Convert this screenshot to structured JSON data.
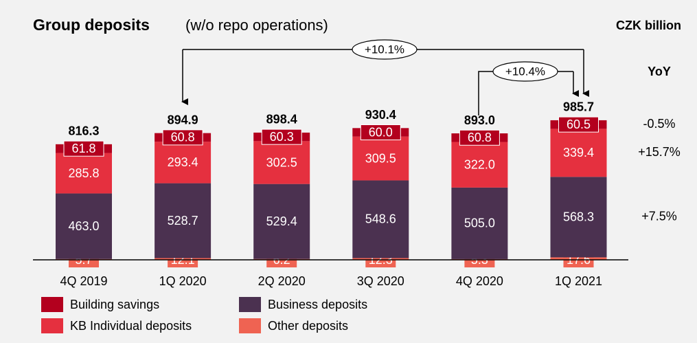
{
  "chart_data": {
    "type": "stacked_bar",
    "title": "Group deposits",
    "subtitle": "(w/o repo operations)",
    "unit": "CZK billion",
    "yoy_header": "YoY",
    "categories": [
      "4Q 2019",
      "1Q 2020",
      "2Q 2020",
      "3Q 2020",
      "4Q 2020",
      "1Q 2021"
    ],
    "series": [
      {
        "name": "Other deposits",
        "color": "#ef6352",
        "values": [
          5.7,
          12.1,
          6.2,
          12.3,
          5.3,
          17.6
        ],
        "value_labels": [
          "5.7",
          "12.1",
          "6.2",
          "12.3",
          "5.3",
          "17.6"
        ]
      },
      {
        "name": "Business deposits",
        "color": "#4b3150",
        "values": [
          463.0,
          528.7,
          529.4,
          548.6,
          505.0,
          568.3
        ],
        "value_labels": [
          "463.0",
          "528.7",
          "529.4",
          "548.6",
          "505.0",
          "568.3"
        ],
        "yoy": "+7.5%"
      },
      {
        "name": "KB Individual deposits",
        "color": "#e5303f",
        "values": [
          285.8,
          293.4,
          302.5,
          309.5,
          322.0,
          339.4
        ],
        "value_labels": [
          "285.8",
          "293.4",
          "302.5",
          "309.5",
          "322.0",
          "339.4"
        ],
        "yoy": "+15.7%"
      },
      {
        "name": "Building savings",
        "color": "#b3001e",
        "values": [
          61.8,
          60.8,
          60.3,
          60.0,
          60.8,
          60.5
        ],
        "value_labels": [
          "61.8",
          "60.8",
          "60.3",
          "60.0",
          "60.8",
          "60.5"
        ],
        "yoy": "-0.5%"
      }
    ],
    "totals": [
      816.3,
      894.9,
      898.4,
      930.4,
      893.0,
      985.7
    ],
    "total_labels": [
      "816.3",
      "894.9",
      "898.4",
      "930.4",
      "893.0",
      "985.7"
    ],
    "annotations": [
      "+10.1%",
      "+10.4%"
    ]
  }
}
